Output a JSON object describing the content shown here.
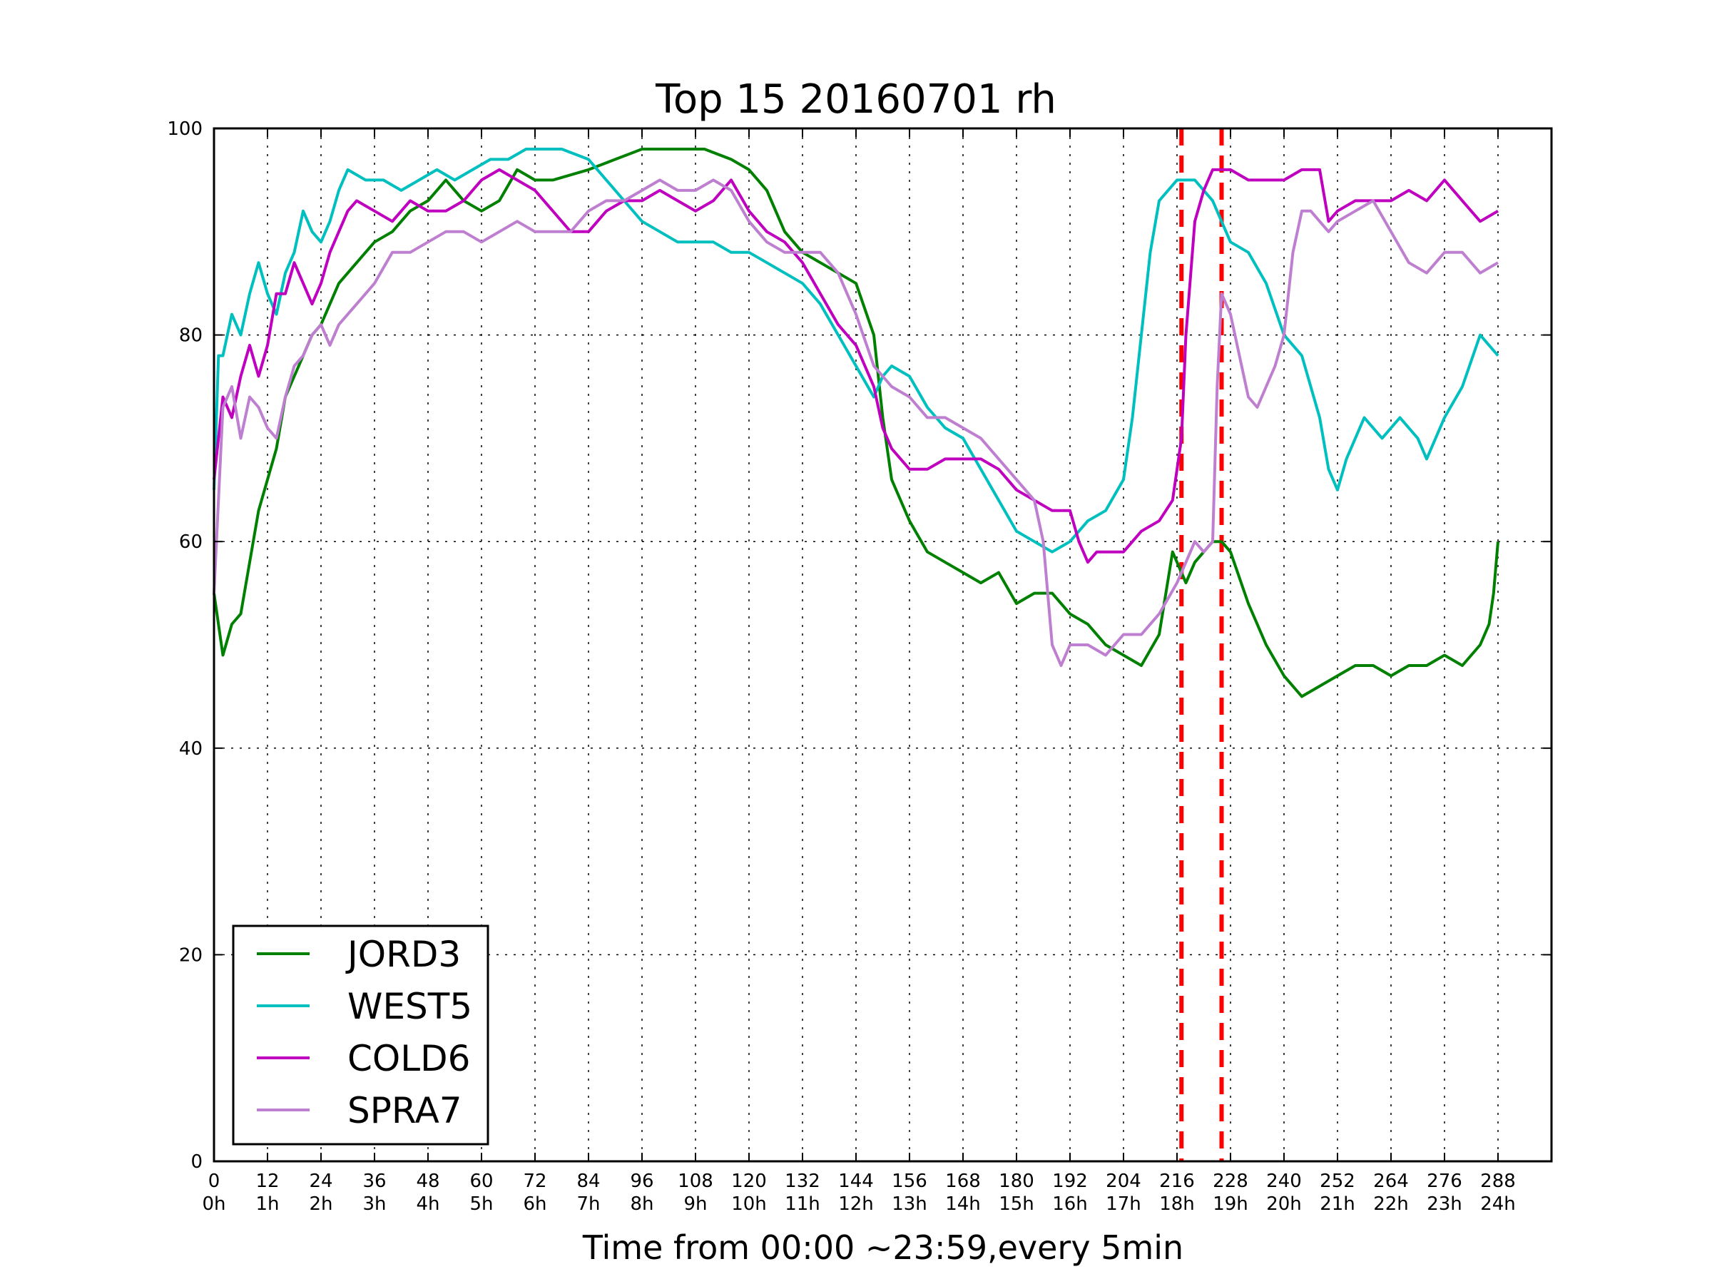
{
  "chart_data": {
    "type": "line",
    "title": "Top 15 20160701 rh",
    "xlabel": "Time from 00:00 ~23:59,every 5min",
    "ylabel": "",
    "xlim": [
      0,
      300
    ],
    "ylim": [
      0,
      100
    ],
    "grid": true,
    "legend_position": "lower-left",
    "x_ticks": [
      0,
      12,
      24,
      36,
      48,
      60,
      72,
      84,
      96,
      108,
      120,
      132,
      144,
      156,
      168,
      180,
      192,
      204,
      216,
      228,
      240,
      252,
      264,
      276,
      288
    ],
    "x_tick_labels": [
      "0\n0h",
      "12\n1h",
      "24\n2h",
      "36\n3h",
      "48\n4h",
      "60\n5h",
      "72\n6h",
      "84\n7h",
      "96\n8h",
      "108\n9h",
      "120\n10h",
      "132\n11h",
      "144\n12h",
      "156\n13h",
      "168\n14h",
      "180\n15h",
      "192\n16h",
      "204\n17h",
      "216\n18h",
      "228\n19h",
      "240\n20h",
      "252\n21h",
      "264\n22h",
      "276\n23h",
      "288\n24h"
    ],
    "y_ticks": [
      0,
      20,
      40,
      60,
      80,
      100
    ],
    "vlines": [
      {
        "x": 217,
        "color": "#ff0000",
        "style": "dashed"
      },
      {
        "x": 226,
        "color": "#ff0000",
        "style": "dashed"
      }
    ],
    "series": [
      {
        "name": "JORD3",
        "color": "#008000",
        "x": [
          0,
          2,
          4,
          6,
          8,
          10,
          12,
          14,
          16,
          18,
          20,
          22,
          24,
          26,
          28,
          30,
          32,
          36,
          40,
          44,
          48,
          52,
          56,
          60,
          64,
          68,
          72,
          76,
          84,
          90,
          96,
          104,
          110,
          116,
          120,
          124,
          128,
          132,
          136,
          140,
          144,
          148,
          150,
          152,
          156,
          160,
          164,
          168,
          172,
          176,
          180,
          184,
          188,
          192,
          196,
          200,
          204,
          208,
          212,
          215,
          218,
          220,
          222,
          224,
          226,
          228,
          232,
          236,
          240,
          244,
          248,
          252,
          256,
          260,
          264,
          268,
          272,
          276,
          280,
          284,
          286,
          287,
          288
        ],
        "y": [
          55,
          49,
          52,
          53,
          58,
          63,
          66,
          69,
          74,
          76,
          78,
          80,
          81,
          83,
          85,
          86,
          87,
          89,
          90,
          92,
          93,
          95,
          93,
          92,
          93,
          96,
          95,
          95,
          96,
          97,
          98,
          98,
          98,
          97,
          96,
          94,
          90,
          88,
          87,
          86,
          85,
          80,
          72,
          66,
          62,
          59,
          58,
          57,
          56,
          57,
          54,
          55,
          55,
          53,
          52,
          50,
          49,
          48,
          51,
          59,
          56,
          58,
          59,
          60,
          60,
          59,
          54,
          50,
          47,
          45,
          46,
          47,
          48,
          48,
          47,
          48,
          48,
          49,
          48,
          50,
          52,
          55,
          60
        ]
      },
      {
        "name": "WEST5",
        "color": "#00bfbf",
        "x": [
          0,
          1,
          2,
          4,
          6,
          8,
          10,
          12,
          14,
          16,
          18,
          20,
          22,
          24,
          26,
          28,
          30,
          34,
          38,
          42,
          46,
          50,
          54,
          58,
          62,
          66,
          70,
          74,
          78,
          84,
          88,
          92,
          96,
          100,
          104,
          108,
          112,
          116,
          120,
          124,
          128,
          132,
          136,
          140,
          144,
          148,
          150,
          152,
          156,
          160,
          164,
          168,
          172,
          176,
          180,
          184,
          188,
          192,
          196,
          200,
          204,
          206,
          208,
          210,
          212,
          216,
          220,
          224,
          228,
          232,
          236,
          240,
          244,
          248,
          250,
          252,
          254,
          256,
          258,
          262,
          266,
          270,
          272,
          276,
          280,
          284,
          286,
          288
        ],
        "y": [
          65,
          78,
          78,
          82,
          80,
          84,
          87,
          84,
          82,
          86,
          88,
          92,
          90,
          89,
          91,
          94,
          96,
          95,
          95,
          94,
          95,
          96,
          95,
          96,
          97,
          97,
          98,
          98,
          98,
          97,
          95,
          93,
          91,
          90,
          89,
          89,
          89,
          88,
          88,
          87,
          86,
          85,
          83,
          80,
          77,
          74,
          76,
          77,
          76,
          73,
          71,
          70,
          67,
          64,
          61,
          60,
          59,
          60,
          62,
          63,
          66,
          72,
          80,
          88,
          93,
          95,
          95,
          93,
          89,
          88,
          85,
          80,
          78,
          72,
          67,
          65,
          68,
          70,
          72,
          70,
          72,
          70,
          68,
          72,
          75,
          80,
          79,
          78
        ]
      },
      {
        "name": "COLD6",
        "color": "#bf00bf",
        "x": [
          0,
          2,
          4,
          6,
          8,
          10,
          12,
          14,
          16,
          18,
          20,
          22,
          24,
          26,
          28,
          30,
          32,
          36,
          40,
          44,
          48,
          52,
          56,
          60,
          64,
          68,
          72,
          76,
          80,
          84,
          88,
          92,
          96,
          100,
          104,
          108,
          112,
          116,
          120,
          124,
          128,
          132,
          136,
          140,
          144,
          148,
          150,
          152,
          156,
          160,
          164,
          168,
          172,
          176,
          180,
          184,
          188,
          192,
          194,
          196,
          198,
          200,
          204,
          208,
          212,
          215,
          217,
          218,
          220,
          222,
          224,
          226,
          228,
          232,
          236,
          240,
          244,
          248,
          250,
          252,
          256,
          260,
          264,
          268,
          272,
          276,
          280,
          284,
          288
        ],
        "y": [
          66,
          74,
          72,
          76,
          79,
          76,
          79,
          84,
          84,
          87,
          85,
          83,
          85,
          88,
          90,
          92,
          93,
          92,
          91,
          93,
          92,
          92,
          93,
          95,
          96,
          95,
          94,
          92,
          90,
          90,
          92,
          93,
          93,
          94,
          93,
          92,
          93,
          95,
          92,
          90,
          89,
          87,
          84,
          81,
          79,
          75,
          71,
          69,
          67,
          67,
          68,
          68,
          68,
          67,
          65,
          64,
          63,
          63,
          60,
          58,
          59,
          59,
          59,
          61,
          62,
          64,
          70,
          80,
          91,
          94,
          96,
          96,
          96,
          95,
          95,
          95,
          96,
          96,
          91,
          92,
          93,
          93,
          93,
          94,
          93,
          95,
          93,
          91,
          92
        ]
      },
      {
        "name": "SPRA7",
        "color": "#bf7fd0",
        "x": [
          0,
          2,
          4,
          6,
          8,
          10,
          12,
          14,
          16,
          18,
          20,
          22,
          24,
          26,
          28,
          30,
          32,
          36,
          40,
          44,
          48,
          52,
          56,
          60,
          64,
          68,
          72,
          76,
          80,
          84,
          88,
          92,
          96,
          100,
          104,
          108,
          112,
          116,
          120,
          124,
          128,
          132,
          136,
          140,
          144,
          148,
          152,
          156,
          160,
          164,
          168,
          172,
          176,
          180,
          184,
          186,
          188,
          190,
          192,
          196,
          200,
          204,
          208,
          212,
          216,
          218,
          220,
          222,
          224,
          225,
          226,
          228,
          230,
          232,
          234,
          236,
          238,
          240,
          242,
          244,
          246,
          248,
          250,
          252,
          256,
          260,
          264,
          268,
          272,
          276,
          280,
          284,
          288
        ],
        "y": [
          55,
          73,
          75,
          70,
          74,
          73,
          71,
          70,
          74,
          77,
          78,
          80,
          81,
          79,
          81,
          82,
          83,
          85,
          88,
          88,
          89,
          90,
          90,
          89,
          90,
          91,
          90,
          90,
          90,
          92,
          93,
          93,
          94,
          95,
          94,
          94,
          95,
          94,
          91,
          89,
          88,
          88,
          88,
          86,
          82,
          77,
          75,
          74,
          72,
          72,
          71,
          70,
          68,
          66,
          64,
          60,
          50,
          48,
          50,
          50,
          49,
          51,
          51,
          53,
          56,
          58,
          60,
          59,
          60,
          75,
          84,
          82,
          78,
          74,
          73,
          75,
          77,
          80,
          88,
          92,
          92,
          91,
          90,
          91,
          92,
          93,
          90,
          87,
          86,
          88,
          88,
          86,
          87
        ]
      }
    ]
  }
}
